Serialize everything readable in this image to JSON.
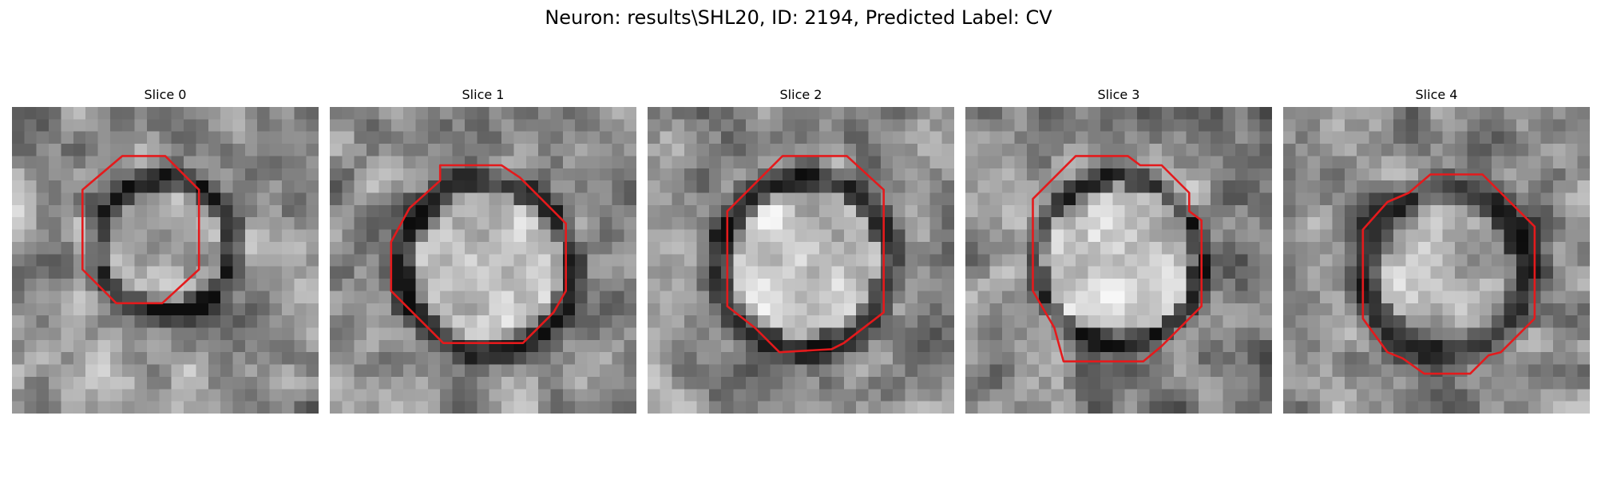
{
  "figure": {
    "title": "Neuron: results\\SHL20, ID: 2194, Predicted Label: CV",
    "contour_color": "#e41a1c",
    "colormap": "grayscale",
    "panels": [
      {
        "title": "Slice 0"
      },
      {
        "title": "Slice 1"
      },
      {
        "title": "Slice 2"
      },
      {
        "title": "Slice 3"
      },
      {
        "title": "Slice 4"
      }
    ]
  }
}
